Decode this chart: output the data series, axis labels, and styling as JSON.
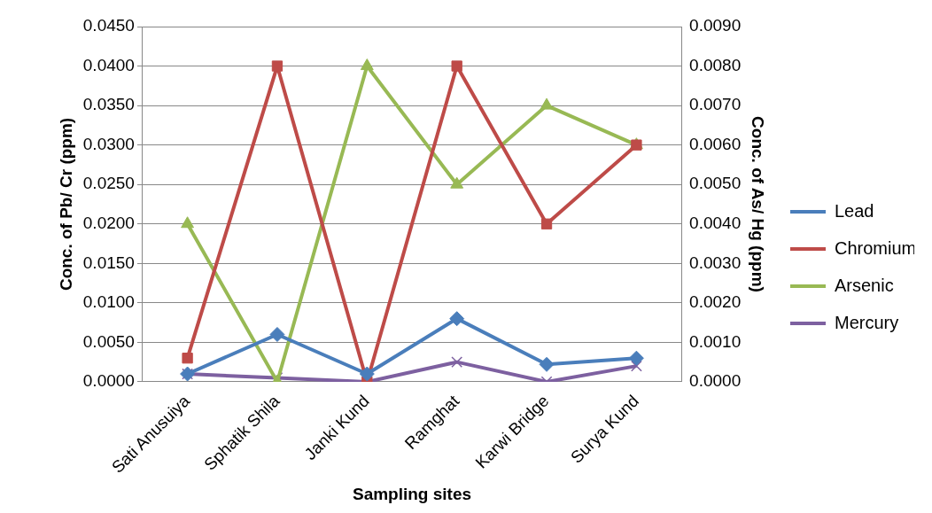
{
  "chart_data": {
    "type": "line",
    "xlabel": "Sampling sites",
    "ylabel": "Conc. of Pb/ Cr (ppm)",
    "y2label": "Conc. of As/ Hg (ppm)",
    "categories": [
      "Sati Anusuiya",
      "Sphatik Shila",
      "Janki Kund",
      "Ramghat",
      "Karwi Bridge",
      "Surya Kund"
    ],
    "series": [
      {
        "name": "Lead",
        "color": "#4a7ebb",
        "marker": "diamond",
        "values": [
          0.001,
          0.006,
          0.001,
          0.008,
          0.0022,
          0.003
        ]
      },
      {
        "name": "Chromium",
        "color": "#be4b48",
        "marker": "square",
        "values": [
          0.003,
          0.04,
          0,
          0.04,
          0.02,
          0.03
        ]
      },
      {
        "name": "Arsenic",
        "color": "#98b954",
        "marker": "triangle",
        "axis": "y2",
        "values": [
          0.004,
          0,
          0.008,
          0.005,
          0.007,
          0.006
        ]
      },
      {
        "name": "Mercury",
        "color": "#7d60a0",
        "marker": "cross",
        "axis": "y2",
        "values": [
          0.0002,
          0.0001,
          0,
          0.0005,
          0,
          0.0004
        ]
      }
    ],
    "ylim": [
      0,
      0.045
    ],
    "yticks": [
      {
        "value": 0,
        "label": "0.0000"
      },
      {
        "value": 0.005,
        "label": "0.0050"
      },
      {
        "value": 0.01,
        "label": "0.0100"
      },
      {
        "value": 0.015,
        "label": "0.0150"
      },
      {
        "value": 0.02,
        "label": "0.0200"
      },
      {
        "value": 0.025,
        "label": "0.0250"
      },
      {
        "value": 0.03,
        "label": "0.0300"
      },
      {
        "value": 0.035,
        "label": "0.0350"
      },
      {
        "value": 0.04,
        "label": "0.0400"
      },
      {
        "value": 0.045,
        "label": "0.0450"
      }
    ],
    "y2lim": [
      0,
      0.009
    ],
    "y2ticks": [
      {
        "value": 0,
        "label": "0.0000"
      },
      {
        "value": 0.001,
        "label": "0.0010"
      },
      {
        "value": 0.002,
        "label": "0.0020"
      },
      {
        "value": 0.003,
        "label": "0.0030"
      },
      {
        "value": 0.004,
        "label": "0.0040"
      },
      {
        "value": 0.005,
        "label": "0.0050"
      },
      {
        "value": 0.006,
        "label": "0.0060"
      },
      {
        "value": 0.007,
        "label": "0.0070"
      },
      {
        "value": 0.008,
        "label": "0.0080"
      },
      {
        "value": 0.009,
        "label": "0.0090"
      }
    ],
    "grid": "y",
    "legend": "right"
  }
}
